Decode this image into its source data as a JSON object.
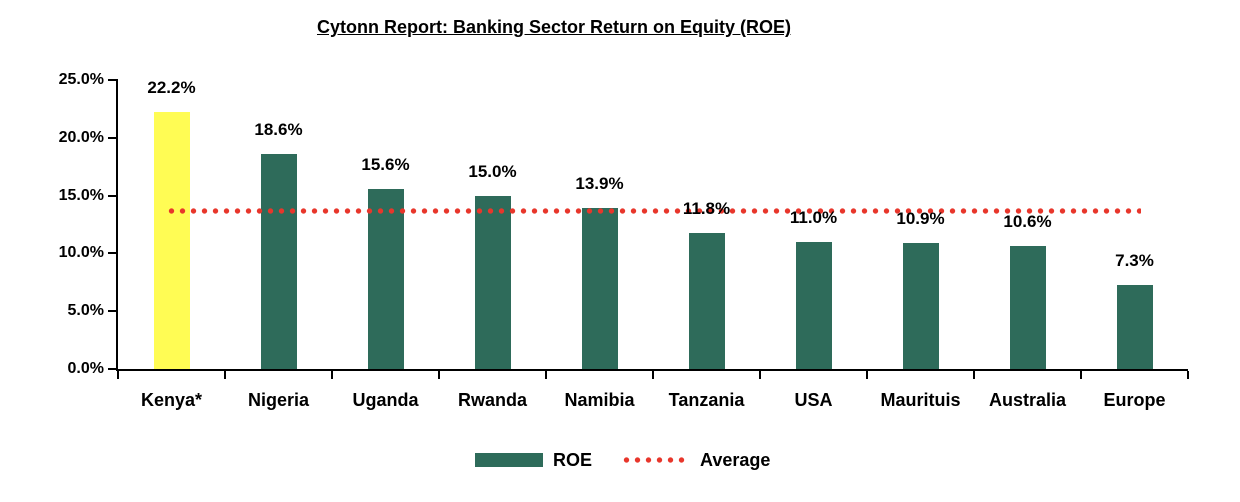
{
  "chart_data": {
    "type": "bar",
    "title": "Cytonn Report: Banking Sector Return on Equity (ROE)",
    "categories": [
      "Kenya*",
      "Nigeria",
      "Uganda",
      "Rwanda",
      "Namibia",
      "Tanzania",
      "USA",
      "Maurituis",
      "Australia",
      "Europe"
    ],
    "series": [
      {
        "name": "ROE",
        "type": "bar",
        "values": [
          22.2,
          18.6,
          15.6,
          15.0,
          13.9,
          11.8,
          11.0,
          10.9,
          10.6,
          7.3
        ]
      },
      {
        "name": "Average",
        "type": "dotted-line",
        "value": 13.7
      }
    ],
    "data_labels": [
      "22.2%",
      "18.6%",
      "15.6%",
      "15.0%",
      "13.9%",
      "11.8%",
      "11.0%",
      "10.9%",
      "10.6%",
      "7.3%"
    ],
    "xlabel": "",
    "ylabel": "",
    "ylim": [
      0,
      25
    ],
    "ytick_step": 5,
    "ytick_labels": [
      "0.0%",
      "5.0%",
      "10.0%",
      "15.0%",
      "20.0%",
      "25.0%"
    ],
    "grid": false,
    "legend_position": "bottom",
    "colors": {
      "bar_default": "#2e6b5a",
      "bar_highlight": "#fffc54",
      "highlight_index": 0,
      "average_line": "#e8362b",
      "axis": "#000000",
      "text": "#000000"
    }
  }
}
